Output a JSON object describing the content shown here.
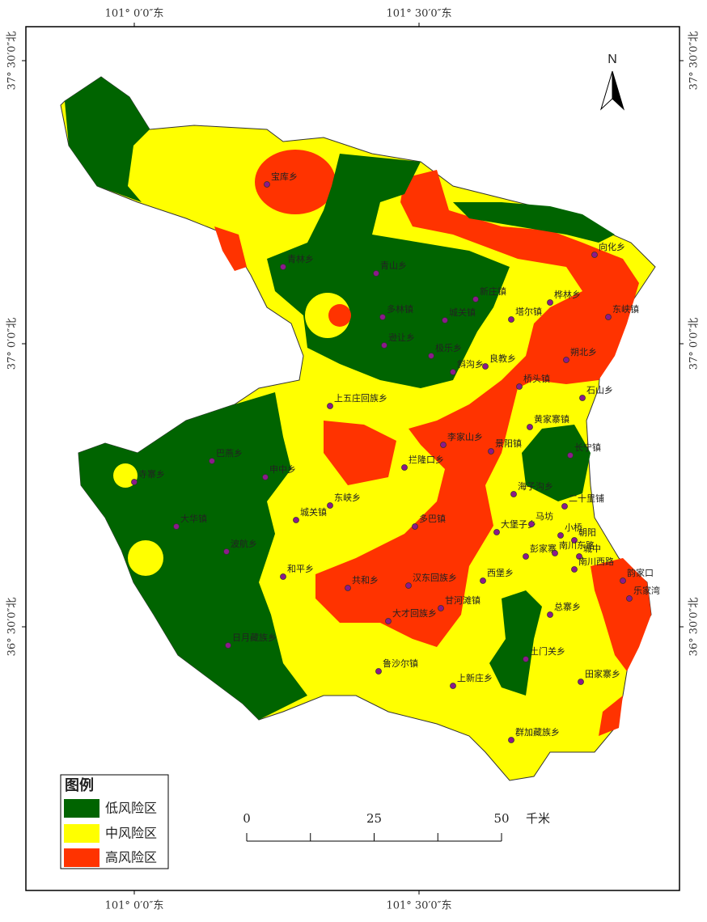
{
  "coordinate_labels": {
    "top": [
      "101° 0′0″东",
      "101° 30′0″东"
    ],
    "bottom": [
      "101° 0′0″东",
      "101° 30′0″东"
    ],
    "left": [
      "37° 30′0″北",
      "37° 0′0″北",
      "36° 30′0″北"
    ],
    "right": [
      "37° 30′0″北",
      "37° 0′0″北",
      "36° 30′0″北"
    ]
  },
  "north": "N",
  "places": [
    "宝库乡",
    "青林乡",
    "青山乡",
    "新庄镇",
    "桦林乡",
    "向化乡",
    "东峡镇",
    "多林镇",
    "城关镇",
    "塔尔镇",
    "逊让乡",
    "极乐乡",
    "斜沟乡",
    "良教乡",
    "朔北乡",
    "桥头镇",
    "石山乡",
    "上五庄回族乡",
    "黄家寨镇",
    "长宁镇",
    "李家山乡",
    "景阳镇",
    "拦隆口乡",
    "巴燕乡",
    "寺寨乡",
    "申中乡",
    "东峡乡",
    "城关镇",
    "大华镇",
    "波航乡",
    "和平乡",
    "日月藏族乡",
    "多巴镇",
    "海子沟乡",
    "二十里铺",
    "大堡子乡",
    "马坊",
    "小桥",
    "朝阳",
    "彭家寨",
    "南川东路",
    "城中",
    "南川西路",
    "韵家口",
    "乐家湾",
    "西堡乡",
    "总寨乡",
    "共和乡",
    "汉东回族乡",
    "甘河滩镇",
    "大才回族乡",
    "鲁沙尔镇",
    "土门关乡",
    "上新庄乡",
    "田家寨乡",
    "群加藏族乡"
  ],
  "legend": {
    "title": "图例",
    "items": [
      "低风险区",
      "中风险区",
      "高风险区"
    ]
  },
  "scale_bar": {
    "ticks": [
      0,
      25,
      50
    ],
    "unit": "千米"
  }
}
